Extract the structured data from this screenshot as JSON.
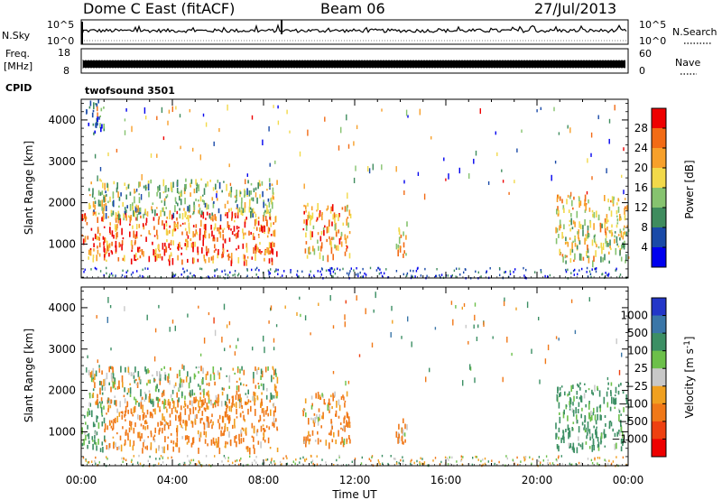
{
  "header": {
    "station": "Dome C East (fitACF)",
    "beam": "Beam 06",
    "date": "27/Jul/2013"
  },
  "top_panels": {
    "nsky_label": "N.Sky",
    "nsearch_label": "N.Search",
    "noise_ticks": [
      "10^5",
      "10^0"
    ],
    "freq_label_1": "Freq.",
    "freq_label_2": "[MHz]",
    "freq_ticks": [
      "18",
      "8"
    ],
    "nave_label": "Nave",
    "nave_ticks": [
      "60",
      "0"
    ],
    "cpid_label": "CPID",
    "cpid_value": "twofsound 3501"
  },
  "colors": {
    "power": [
      "#0000ee",
      "#1a4aa8",
      "#3f8c5e",
      "#86c36f",
      "#f2d94a",
      "#f7a02a",
      "#f26b15",
      "#ee0000"
    ],
    "velocity": [
      "#2336c8",
      "#3a76a8",
      "#3c8f64",
      "#6cc04a",
      "#c8c8c8",
      "#f0a020",
      "#f07818",
      "#ee4010",
      "#ee0000"
    ],
    "ground_scatter": "#7f7f7f"
  },
  "chart_data": [
    {
      "type": "heatmap",
      "panel": "power",
      "ylabel": "Slant Range [km]",
      "xlabel": "",
      "x_ticks": [
        "00:00",
        "04:00",
        "08:00",
        "12:00",
        "16:00",
        "20:00",
        "00:00"
      ],
      "xlim_hours": [
        0,
        24
      ],
      "ylim_km": [
        180,
        4500
      ],
      "y_ticks": [
        1000,
        2000,
        3000,
        4000
      ],
      "colorbar": {
        "label": "Power [dB]",
        "range": [
          0,
          32
        ],
        "ticks": [
          "4",
          "8",
          "12",
          "16",
          "20",
          "24",
          "28"
        ]
      },
      "echo_regions": [
        {
          "t_start": 0.0,
          "t_end": 8.6,
          "r_low": 600,
          "r_high": 1800,
          "value": 26
        },
        {
          "t_start": 0.3,
          "t_end": 8.6,
          "r_low": 1700,
          "r_high": 2600,
          "value": 14
        },
        {
          "t_start": 9.7,
          "t_end": 11.8,
          "r_low": 700,
          "r_high": 2000,
          "value": 22
        },
        {
          "t_start": 13.8,
          "t_end": 14.3,
          "r_low": 700,
          "r_high": 1600,
          "value": 20
        },
        {
          "t_start": 20.8,
          "t_end": 24.0,
          "r_low": 600,
          "r_high": 2200,
          "value": 18
        },
        {
          "t_start": 0.2,
          "t_end": 1.0,
          "r_low": 3700,
          "r_high": 4500,
          "value": 8
        }
      ]
    },
    {
      "type": "heatmap",
      "panel": "velocity",
      "ylabel": "Slant Range [km]",
      "xlabel": "Time UT",
      "x_ticks": [
        "00:00",
        "04:00",
        "08:00",
        "12:00",
        "16:00",
        "20:00",
        "00:00"
      ],
      "xlim_hours": [
        0,
        24
      ],
      "ylim_km": [
        180,
        4500
      ],
      "y_ticks": [
        1000,
        2000,
        3000,
        4000
      ],
      "colorbar": {
        "label": "Velocity [m s^-1]",
        "range": [
          -1000,
          1000
        ],
        "ticks": [
          "1000",
          "500",
          "100",
          "25",
          "-25",
          "-100",
          "-500",
          "-1000"
        ]
      },
      "echo_regions": [
        {
          "t_start": 0.0,
          "t_end": 1.0,
          "r_low": 600,
          "r_high": 1800,
          "value": 200
        },
        {
          "t_start": 1.0,
          "t_end": 8.6,
          "r_low": 600,
          "r_high": 1800,
          "value": -200
        },
        {
          "t_start": 0.3,
          "t_end": 8.6,
          "r_low": 1700,
          "r_high": 2600,
          "value": 0
        },
        {
          "t_start": 9.7,
          "t_end": 11.8,
          "r_low": 700,
          "r_high": 2000,
          "value": -150
        },
        {
          "t_start": 13.8,
          "t_end": 14.3,
          "r_low": 700,
          "r_high": 1600,
          "value": -100
        },
        {
          "t_start": 20.8,
          "t_end": 24.0,
          "r_low": 600,
          "r_high": 2200,
          "value": 200
        }
      ]
    }
  ]
}
